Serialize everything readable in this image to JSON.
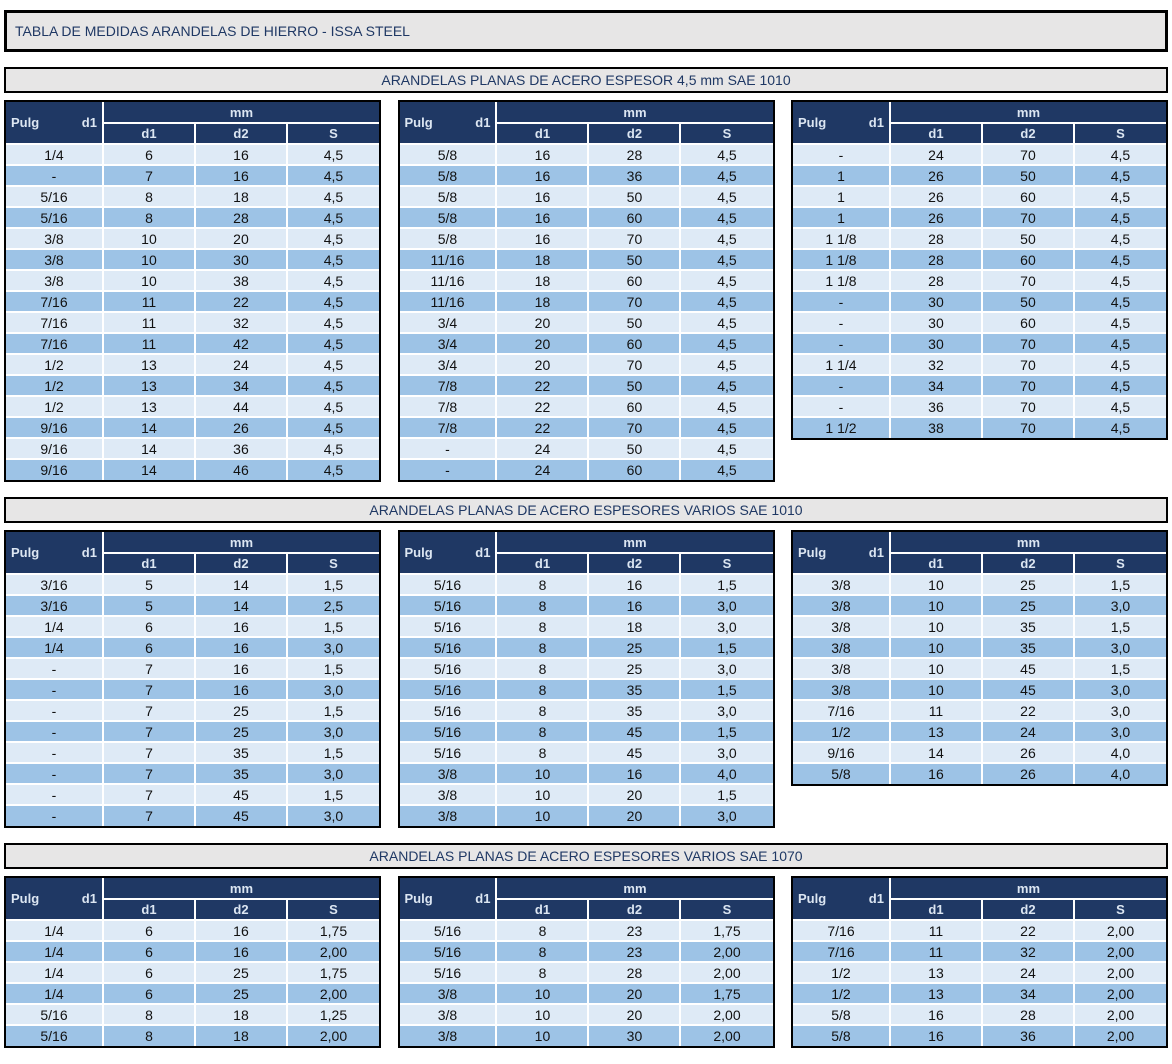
{
  "title": "TABLA DE MEDIDAS ARANDELAS DE HIERRO - ISSA STEEL",
  "colors": {
    "header_bg": "#1F3864",
    "header_text": "#DCE6F2",
    "row_light": "#DEEAF6",
    "row_dark": "#9DC3E6",
    "bar_bg": "#E7E6E6",
    "bar_text": "#1F3864"
  },
  "columns": {
    "pulg": "Pulg",
    "pulg_d1": "d1",
    "group_mm": "mm",
    "sub": [
      "d1",
      "d2",
      "S"
    ]
  },
  "sections": [
    {
      "title": "ARANDELAS PLANAS DE ACERO ESPESOR 4,5 mm SAE 1010",
      "tables": [
        {
          "rows": [
            [
              "1/4",
              "6",
              "16",
              "4,5"
            ],
            [
              "-",
              "7",
              "16",
              "4,5"
            ],
            [
              "5/16",
              "8",
              "18",
              "4,5"
            ],
            [
              "5/16",
              "8",
              "28",
              "4,5"
            ],
            [
              "3/8",
              "10",
              "20",
              "4,5"
            ],
            [
              "3/8",
              "10",
              "30",
              "4,5"
            ],
            [
              "3/8",
              "10",
              "38",
              "4,5"
            ],
            [
              "7/16",
              "11",
              "22",
              "4,5"
            ],
            [
              "7/16",
              "11",
              "32",
              "4,5"
            ],
            [
              "7/16",
              "11",
              "42",
              "4,5"
            ],
            [
              "1/2",
              "13",
              "24",
              "4,5"
            ],
            [
              "1/2",
              "13",
              "34",
              "4,5"
            ],
            [
              "1/2",
              "13",
              "44",
              "4,5"
            ],
            [
              "9/16",
              "14",
              "26",
              "4,5"
            ],
            [
              "9/16",
              "14",
              "36",
              "4,5"
            ],
            [
              "9/16",
              "14",
              "46",
              "4,5"
            ]
          ]
        },
        {
          "rows": [
            [
              "5/8",
              "16",
              "28",
              "4,5"
            ],
            [
              "5/8",
              "16",
              "36",
              "4,5"
            ],
            [
              "5/8",
              "16",
              "50",
              "4,5"
            ],
            [
              "5/8",
              "16",
              "60",
              "4,5"
            ],
            [
              "5/8",
              "16",
              "70",
              "4,5"
            ],
            [
              "11/16",
              "18",
              "50",
              "4,5"
            ],
            [
              "11/16",
              "18",
              "60",
              "4,5"
            ],
            [
              "11/16",
              "18",
              "70",
              "4,5"
            ],
            [
              "3/4",
              "20",
              "50",
              "4,5"
            ],
            [
              "3/4",
              "20",
              "60",
              "4,5"
            ],
            [
              "3/4",
              "20",
              "70",
              "4,5"
            ],
            [
              "7/8",
              "22",
              "50",
              "4,5"
            ],
            [
              "7/8",
              "22",
              "60",
              "4,5"
            ],
            [
              "7/8",
              "22",
              "70",
              "4,5"
            ],
            [
              "-",
              "24",
              "50",
              "4,5"
            ],
            [
              "-",
              "24",
              "60",
              "4,5"
            ]
          ]
        },
        {
          "rows": [
            [
              "-",
              "24",
              "70",
              "4,5"
            ],
            [
              "1",
              "26",
              "50",
              "4,5"
            ],
            [
              "1",
              "26",
              "60",
              "4,5"
            ],
            [
              "1",
              "26",
              "70",
              "4,5"
            ],
            [
              "1 1/8",
              "28",
              "50",
              "4,5"
            ],
            [
              "1 1/8",
              "28",
              "60",
              "4,5"
            ],
            [
              "1 1/8",
              "28",
              "70",
              "4,5"
            ],
            [
              "-",
              "30",
              "50",
              "4,5"
            ],
            [
              "-",
              "30",
              "60",
              "4,5"
            ],
            [
              "-",
              "30",
              "70",
              "4,5"
            ],
            [
              "1 1/4",
              "32",
              "70",
              "4,5"
            ],
            [
              "-",
              "34",
              "70",
              "4,5"
            ],
            [
              "-",
              "36",
              "70",
              "4,5"
            ],
            [
              "1 1/2",
              "38",
              "70",
              "4,5"
            ]
          ]
        }
      ]
    },
    {
      "title": "ARANDELAS PLANAS DE ACERO ESPESORES VARIOS SAE 1010",
      "tables": [
        {
          "rows": [
            [
              "3/16",
              "5",
              "14",
              "1,5"
            ],
            [
              "3/16",
              "5",
              "14",
              "2,5"
            ],
            [
              "1/4",
              "6",
              "16",
              "1,5"
            ],
            [
              "1/4",
              "6",
              "16",
              "3,0"
            ],
            [
              "-",
              "7",
              "16",
              "1,5"
            ],
            [
              "-",
              "7",
              "16",
              "3,0"
            ],
            [
              "-",
              "7",
              "25",
              "1,5"
            ],
            [
              "-",
              "7",
              "25",
              "3,0"
            ],
            [
              "-",
              "7",
              "35",
              "1,5"
            ],
            [
              "-",
              "7",
              "35",
              "3,0"
            ],
            [
              "-",
              "7",
              "45",
              "1,5"
            ],
            [
              "-",
              "7",
              "45",
              "3,0"
            ]
          ]
        },
        {
          "rows": [
            [
              "5/16",
              "8",
              "16",
              "1,5"
            ],
            [
              "5/16",
              "8",
              "16",
              "3,0"
            ],
            [
              "5/16",
              "8",
              "18",
              "3,0"
            ],
            [
              "5/16",
              "8",
              "25",
              "1,5"
            ],
            [
              "5/16",
              "8",
              "25",
              "3,0"
            ],
            [
              "5/16",
              "8",
              "35",
              "1,5"
            ],
            [
              "5/16",
              "8",
              "35",
              "3,0"
            ],
            [
              "5/16",
              "8",
              "45",
              "1,5"
            ],
            [
              "5/16",
              "8",
              "45",
              "3,0"
            ],
            [
              "3/8",
              "10",
              "16",
              "4,0"
            ],
            [
              "3/8",
              "10",
              "20",
              "1,5"
            ],
            [
              "3/8",
              "10",
              "20",
              "3,0"
            ]
          ]
        },
        {
          "rows": [
            [
              "3/8",
              "10",
              "25",
              "1,5"
            ],
            [
              "3/8",
              "10",
              "25",
              "3,0"
            ],
            [
              "3/8",
              "10",
              "35",
              "1,5"
            ],
            [
              "3/8",
              "10",
              "35",
              "3,0"
            ],
            [
              "3/8",
              "10",
              "45",
              "1,5"
            ],
            [
              "3/8",
              "10",
              "45",
              "3,0"
            ],
            [
              "7/16",
              "11",
              "22",
              "3,0"
            ],
            [
              "1/2",
              "13",
              "24",
              "3,0"
            ],
            [
              "9/16",
              "14",
              "26",
              "4,0"
            ],
            [
              "5/8",
              "16",
              "26",
              "4,0"
            ]
          ]
        }
      ]
    },
    {
      "title": "ARANDELAS PLANAS DE ACERO ESPESORES VARIOS SAE 1070",
      "tables": [
        {
          "rows": [
            [
              "1/4",
              "6",
              "16",
              "1,75"
            ],
            [
              "1/4",
              "6",
              "16",
              "2,00"
            ],
            [
              "1/4",
              "6",
              "25",
              "1,75"
            ],
            [
              "1/4",
              "6",
              "25",
              "2,00"
            ],
            [
              "5/16",
              "8",
              "18",
              "1,25"
            ],
            [
              "5/16",
              "8",
              "18",
              "2,00"
            ]
          ]
        },
        {
          "rows": [
            [
              "5/16",
              "8",
              "23",
              "1,75"
            ],
            [
              "5/16",
              "8",
              "23",
              "2,00"
            ],
            [
              "5/16",
              "8",
              "28",
              "2,00"
            ],
            [
              "3/8",
              "10",
              "20",
              "1,75"
            ],
            [
              "3/8",
              "10",
              "20",
              "2,00"
            ],
            [
              "3/8",
              "10",
              "30",
              "2,00"
            ]
          ]
        },
        {
          "rows": [
            [
              "7/16",
              "11",
              "22",
              "2,00"
            ],
            [
              "7/16",
              "11",
              "32",
              "2,00"
            ],
            [
              "1/2",
              "13",
              "24",
              "2,00"
            ],
            [
              "1/2",
              "13",
              "34",
              "2,00"
            ],
            [
              "5/8",
              "16",
              "28",
              "2,00"
            ],
            [
              "5/8",
              "16",
              "36",
              "2,00"
            ]
          ]
        }
      ]
    }
  ]
}
